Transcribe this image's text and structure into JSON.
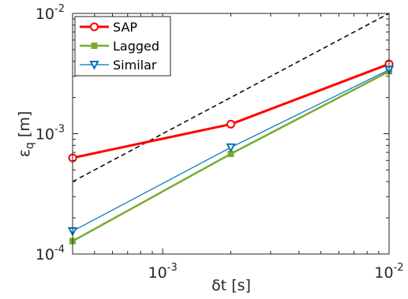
{
  "chart_data": {
    "type": "line",
    "title": "",
    "x_scale": "log",
    "y_scale": "log",
    "xlim": [
      0.0004,
      0.01
    ],
    "ylim": [
      0.0001,
      0.01
    ],
    "xlabel": {
      "main": "δt",
      "unit": "[s]"
    },
    "ylabel": {
      "main": "ε",
      "sub": "q",
      "unit": "[m]"
    },
    "x_ticks": [
      {
        "value": 0.001,
        "base": "10",
        "exp": "-3"
      },
      {
        "value": 0.01,
        "base": "10",
        "exp": "-2"
      }
    ],
    "y_ticks": [
      {
        "value": 0.0001,
        "base": "10",
        "exp": "-4"
      },
      {
        "value": 0.001,
        "base": "10",
        "exp": "-3"
      },
      {
        "value": 0.01,
        "base": "10",
        "exp": "-2"
      }
    ],
    "grid": false,
    "legend_position": "top-left",
    "series": [
      {
        "name": "SAP",
        "x": [
          0.0004,
          0.002,
          0.01
        ],
        "y": [
          0.00063,
          0.0012,
          0.0038
        ],
        "color": "#ff0000",
        "marker": "circle",
        "line_width": 3
      },
      {
        "name": "Lagged",
        "x": [
          0.0004,
          0.002,
          0.01
        ],
        "y": [
          0.000128,
          0.00068,
          0.0033
        ],
        "color": "#77ac30",
        "marker": "square",
        "line_width": 2.5
      },
      {
        "name": "Similar",
        "x": [
          0.0004,
          0.002,
          0.01
        ],
        "y": [
          0.000155,
          0.00077,
          0.0034
        ],
        "color": "#0072bd",
        "marker": "triangle-down",
        "line_width": 1.2
      }
    ],
    "reference_line": {
      "style": "dashed",
      "color": "#000000",
      "x": [
        0.0004,
        0.01
      ],
      "y": [
        0.0004,
        0.01
      ]
    }
  }
}
